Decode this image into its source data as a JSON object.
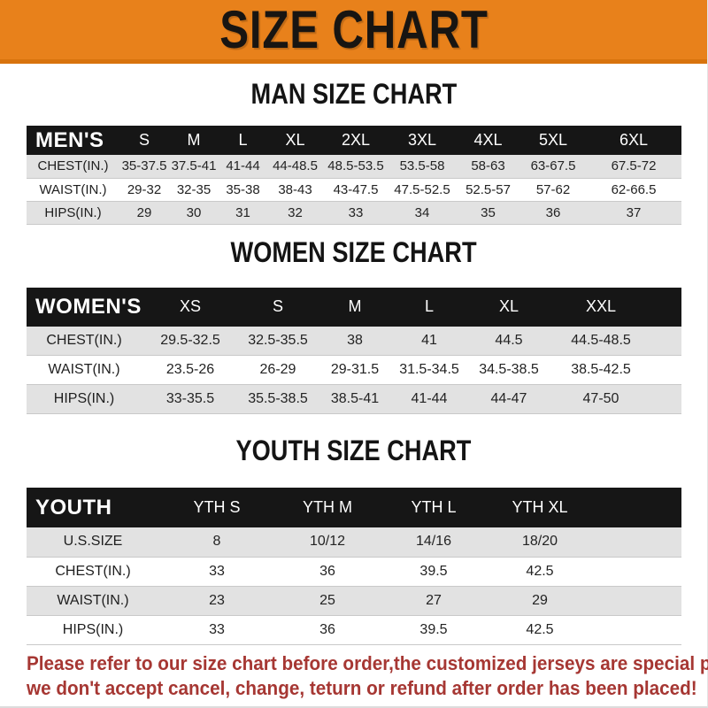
{
  "header": {
    "title": "SIZE CHART"
  },
  "chart_data": [
    {
      "type": "table",
      "title": "MAN SIZE CHART",
      "corner_label": "MEN'S",
      "columns": [
        "S",
        "M",
        "L",
        "XL",
        "2XL",
        "3XL",
        "4XL",
        "5XL",
        "6XL"
      ],
      "rows": [
        {
          "label": "CHEST(IN.)",
          "values": [
            "35-37.5",
            "37.5-41",
            "41-44",
            "44-48.5",
            "48.5-53.5",
            "53.5-58",
            "58-63",
            "63-67.5",
            "67.5-72"
          ]
        },
        {
          "label": "WAIST(IN.)",
          "values": [
            "29-32",
            "32-35",
            "35-38",
            "38-43",
            "43-47.5",
            "47.5-52.5",
            "52.5-57",
            "57-62",
            "62-66.5"
          ]
        },
        {
          "label": "HIPS(IN.)",
          "values": [
            "29",
            "30",
            "31",
            "32",
            "33",
            "34",
            "35",
            "36",
            "37"
          ]
        }
      ]
    },
    {
      "type": "table",
      "title": "WOMEN SIZE CHART",
      "corner_label": "WOMEN'S",
      "columns": [
        "XS",
        "S",
        "M",
        "L",
        "XL",
        "XXL"
      ],
      "rows": [
        {
          "label": "CHEST(IN.)",
          "values": [
            "29.5-32.5",
            "32.5-35.5",
            "38",
            "41",
            "44.5",
            "44.5-48.5"
          ]
        },
        {
          "label": "WAIST(IN.)",
          "values": [
            "23.5-26",
            "26-29",
            "29-31.5",
            "31.5-34.5",
            "34.5-38.5",
            "38.5-42.5"
          ]
        },
        {
          "label": "HIPS(IN.)",
          "values": [
            "33-35.5",
            "35.5-38.5",
            "38.5-41",
            "41-44",
            "44-47",
            "47-50"
          ]
        }
      ]
    },
    {
      "type": "table",
      "title": "YOUTH SIZE CHART",
      "corner_label": "YOUTH",
      "columns": [
        "YTH S",
        "YTH M",
        "YTH L",
        "YTH XL"
      ],
      "rows": [
        {
          "label": "U.S.SIZE",
          "values": [
            "8",
            "10/12",
            "14/16",
            "18/20"
          ]
        },
        {
          "label": "CHEST(IN.)",
          "values": [
            "33",
            "36",
            "39.5",
            "42.5"
          ]
        },
        {
          "label": "WAIST(IN.)",
          "values": [
            "23",
            "25",
            "27",
            "29"
          ]
        },
        {
          "label": "HIPS(IN.)",
          "values": [
            "33",
            "36",
            "39.5",
            "42.5"
          ]
        }
      ]
    }
  ],
  "footer": {
    "lines": [
      "Please refer to our size chart before order,the customized jerseys are special products,",
      "we don't accept cancel, change, teturn or refund after order has been placed!"
    ]
  },
  "colors": {
    "banner_orange": "#E8811B",
    "banner_edge": "#D8730D",
    "band_black": "#161616",
    "row_gray": "#E2E2E2",
    "row_border": "#C9C9C9",
    "footer_red": "#A63733",
    "text_dark": "#222222"
  }
}
